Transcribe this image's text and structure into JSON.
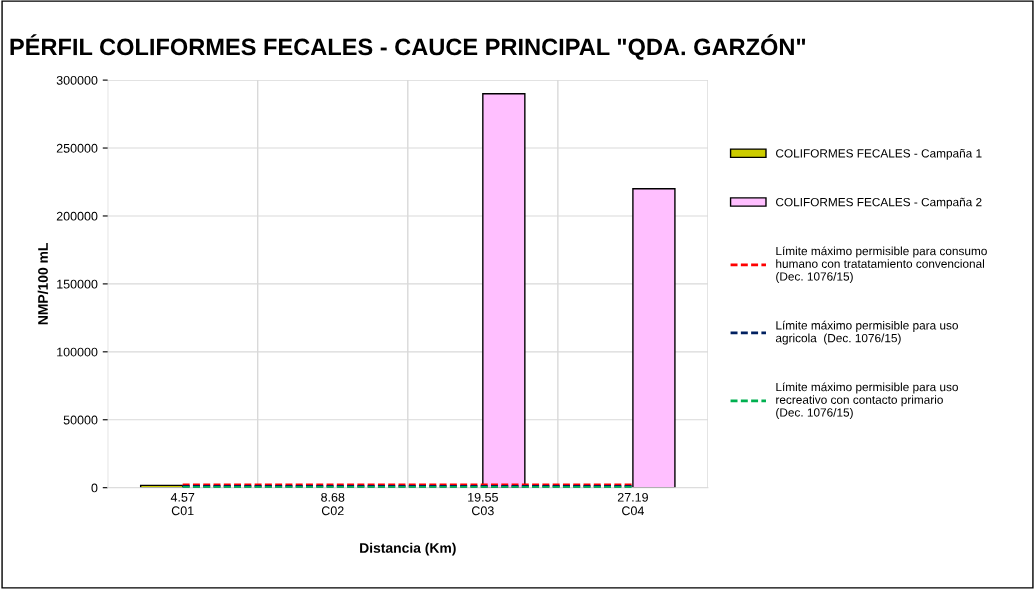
{
  "chart_data": {
    "type": "bar",
    "title": "PÉRFIL COLIFORMES FECALES - CAUCE PRINCIPAL \"QDA. GARZÓN\"",
    "xlabel": "Distancia (Km)",
    "ylabel": "NMP/100 mL",
    "categories": [
      "4.57\nC01",
      "8.68\nC02",
      "19.55\nC03",
      "27.19\nC04"
    ],
    "series": [
      {
        "name": "COLIFORMES FECALES - Campaña 1",
        "color": "#cccc00",
        "values": [
          1700,
          null,
          null,
          null
        ]
      },
      {
        "name": "COLIFORMES FECALES - Campaña 2",
        "color": "#ffbfff",
        "values": [
          null,
          null,
          290000,
          220000
        ]
      },
      {
        "name": "Límite máximo permisible para consumo humano con tratatamiento convencional (Dec. 1076/15)",
        "type": "line",
        "line_style": "dashed",
        "color": "#ff0000",
        "values": [
          2000,
          2000,
          2000,
          2000
        ]
      },
      {
        "name": "Límite máximo permisible para uso agricola  (Dec. 1076/15)",
        "type": "line",
        "line_style": "dashed",
        "color": "#002060",
        "values": [
          1000,
          1000,
          1000,
          1000
        ]
      },
      {
        "name": "Límite máximo permisible para uso recreativo con contacto primario  (Dec. 1076/15)",
        "type": "line",
        "line_style": "dashed",
        "color": "#00b050",
        "values": [
          200,
          200,
          200,
          200
        ]
      }
    ],
    "ylim": [
      0,
      300000
    ],
    "yticks": [
      0,
      50000,
      100000,
      150000,
      200000,
      250000,
      300000
    ],
    "grid": true,
    "legend": "right"
  }
}
